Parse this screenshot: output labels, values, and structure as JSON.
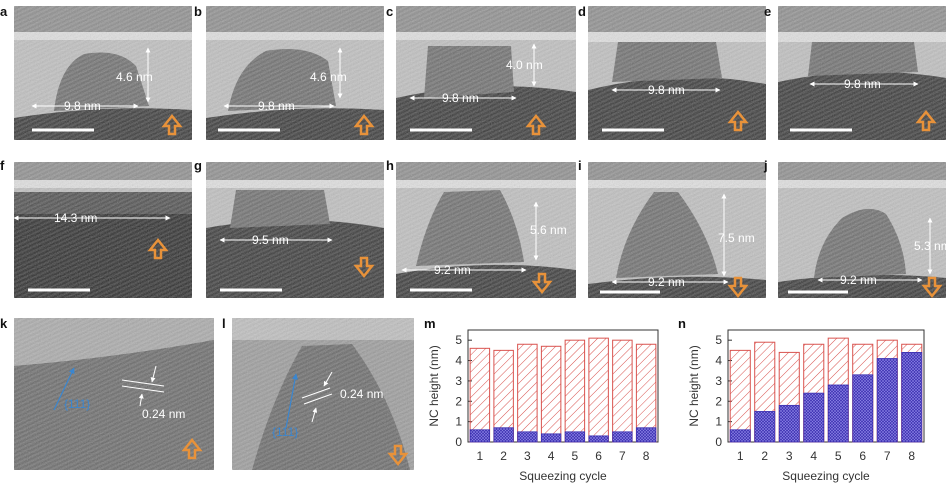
{
  "panels": {
    "a": {
      "label": "a",
      "height": "4.6 nm",
      "width": "9.8 nm",
      "arrow": "up"
    },
    "b": {
      "label": "b",
      "height": "4.6 nm",
      "width": "9.8 nm",
      "arrow": "up"
    },
    "c": {
      "label": "c",
      "height": "4.0 nm",
      "width": "9.8 nm",
      "arrow": "up"
    },
    "d": {
      "label": "d",
      "width": "9.8 nm",
      "arrow": "up"
    },
    "e": {
      "label": "e",
      "width": "9.8 nm",
      "arrow": "up"
    },
    "f": {
      "label": "f",
      "width": "14.3 nm",
      "arrow": "up"
    },
    "g": {
      "label": "g",
      "width": "9.5 nm",
      "arrow": "down"
    },
    "h": {
      "label": "h",
      "height": "5.6 nm",
      "width": "9.2 nm",
      "arrow": "down"
    },
    "i": {
      "label": "i",
      "height": "7.5 nm",
      "width": "9.2 nm",
      "arrow": "down"
    },
    "j": {
      "label": "j",
      "height": "5.3 nm",
      "width": "9.2 nm",
      "arrow": "down"
    },
    "k": {
      "label": "k",
      "plane": "{111}",
      "spacing": "0.24 nm",
      "arrow": "up"
    },
    "l": {
      "label": "l",
      "plane": "{111}",
      "spacing": "0.24 nm",
      "arrow": "down"
    },
    "m": {
      "label": "m"
    },
    "n": {
      "label": "n"
    }
  },
  "colors": {
    "arrow": "#e8923a",
    "plane": "#3a86d0",
    "hatch_red": "#d9534f",
    "hatch_blue": "#3b2fb0",
    "axis": "#333333"
  },
  "chart_data": [
    {
      "type": "bar",
      "panel": "m",
      "categories": [
        "1",
        "2",
        "3",
        "4",
        "5",
        "6",
        "7",
        "8"
      ],
      "series": [
        {
          "values": [
            4.6,
            4.5,
            4.8,
            4.7,
            5.0,
            5.1,
            5.0,
            4.8
          ]
        },
        {
          "values": [
            0.6,
            0.7,
            0.5,
            0.4,
            0.5,
            0.3,
            0.5,
            0.7
          ]
        }
      ],
      "xlabel": "Squeezing cycle",
      "ylabel": "NC height (nm)",
      "ylim": [
        0,
        5.5
      ],
      "yticks": [
        "0",
        "1",
        "2",
        "3",
        "4",
        "5"
      ],
      "grid": false
    },
    {
      "type": "bar",
      "panel": "n",
      "categories": [
        "1",
        "2",
        "3",
        "4",
        "5",
        "6",
        "7",
        "8"
      ],
      "series": [
        {
          "values": [
            4.5,
            4.9,
            4.4,
            4.8,
            5.1,
            4.8,
            5.0,
            4.8
          ]
        },
        {
          "values": [
            0.6,
            1.5,
            1.8,
            2.4,
            2.8,
            3.3,
            4.1,
            4.4
          ]
        }
      ],
      "xlabel": "Squeezing cycle",
      "ylabel": "NC height (nm)",
      "ylim": [
        0,
        5.5
      ],
      "yticks": [
        "0",
        "1",
        "2",
        "3",
        "4",
        "5"
      ],
      "grid": false
    }
  ]
}
